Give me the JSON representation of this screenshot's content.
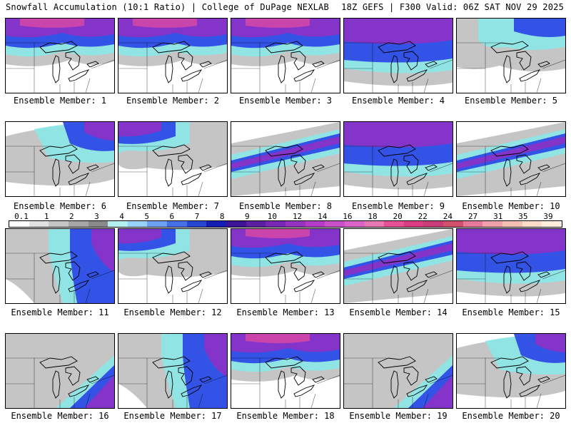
{
  "header": {
    "left_title": "Snowfall Accumulation (10:1 Ratio) | College of DuPage NEXLAB",
    "right_title": "18Z GEFS | F300 Valid: 06Z SAT NOV 29 2025"
  },
  "members": [
    {
      "label": "Ensemble Member: 1",
      "pattern": "north-heavy"
    },
    {
      "label": "Ensemble Member: 2",
      "pattern": "north-heavy"
    },
    {
      "label": "Ensemble Member: 3",
      "pattern": "north-heavy"
    },
    {
      "label": "Ensemble Member: 4",
      "pattern": "broad"
    },
    {
      "label": "Ensemble Member: 5",
      "pattern": "light"
    },
    {
      "label": "Ensemble Member: 6",
      "pattern": "northeast"
    },
    {
      "label": "Ensemble Member: 7",
      "pattern": "northwest"
    },
    {
      "label": "Ensemble Member: 8",
      "pattern": "band"
    },
    {
      "label": "Ensemble Member: 9",
      "pattern": "broad"
    },
    {
      "label": "Ensemble Member: 10",
      "pattern": "band"
    },
    {
      "label": "Ensemble Member: 11",
      "pattern": "east"
    },
    {
      "label": "Ensemble Member: 12",
      "pattern": "northwest"
    },
    {
      "label": "Ensemble Member: 13",
      "pattern": "north-heavy"
    },
    {
      "label": "Ensemble Member: 14",
      "pattern": "band"
    },
    {
      "label": "Ensemble Member: 15",
      "pattern": "broad"
    },
    {
      "label": "Ensemble Member: 16",
      "pattern": "southeast"
    },
    {
      "label": "Ensemble Member: 17",
      "pattern": "east"
    },
    {
      "label": "Ensemble Member: 18",
      "pattern": "north-heavy"
    },
    {
      "label": "Ensemble Member: 19",
      "pattern": "southeast"
    },
    {
      "label": "Ensemble Member: 20",
      "pattern": "northeast"
    }
  ],
  "legend": {
    "labels": [
      "0.1",
      "1",
      "2",
      "3",
      "4",
      "5",
      "6",
      "7",
      "8",
      "9",
      "10",
      "12",
      "14",
      "16",
      "18",
      "20",
      "22",
      "24",
      "27",
      "31",
      "35",
      "39"
    ],
    "colors": [
      "#ffffff",
      "#e2e2e2",
      "#c6c6c6",
      "#a6a6a6",
      "#8a8a8a",
      "#b4f0f0",
      "#96d2fa",
      "#6ea0f5",
      "#4670e6",
      "#2846d2",
      "#141eb4",
      "#3c1496",
      "#5a20a0",
      "#7828b4",
      "#9632c0",
      "#b43cc8",
      "#c850c8",
      "#dc64c8",
      "#e678b4",
      "#e65096",
      "#dc3c82",
      "#c83c78",
      "#d2506e",
      "#e6789b",
      "#f0a0aa",
      "#f5c0b4",
      "#fadcc8",
      "#fdeede"
    ]
  },
  "colors": {
    "land": "#ffffff",
    "light_snow": "#c0c0c0",
    "cyan": "#8ce6e6",
    "blue": "#2a46e6",
    "purple": "#8c32c8",
    "magenta": "#d046a8",
    "border": "#000000"
  }
}
